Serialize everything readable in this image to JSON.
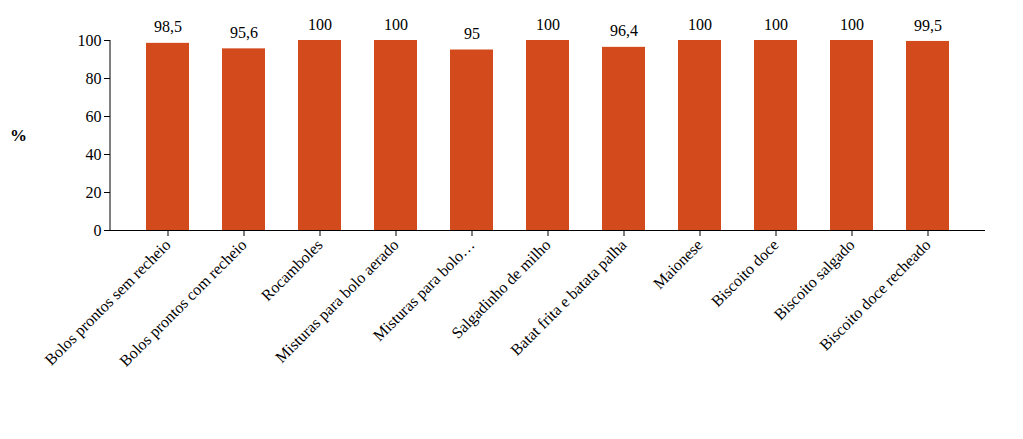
{
  "chart_data": {
    "type": "bar",
    "y_label": "%",
    "categories": [
      "Bolos prontos sem recheio",
      "Bolos prontos com recheio",
      "Rocamboles",
      "Misturas para bolo aerado",
      "Misturas para bolo…",
      "Salgadinho de milho",
      "Batat frita e batata palha",
      "Maionese",
      "Biscoito doce",
      "Biscoito salgado",
      "Biscoito doce recheado"
    ],
    "values": [
      98.5,
      95.6,
      100,
      100,
      95,
      100,
      96.4,
      100,
      100,
      100,
      99.5
    ],
    "value_labels": [
      "98,5",
      "95,6",
      "100",
      "100",
      "95",
      "100",
      "96,4",
      "100",
      "100",
      "100",
      "99,5"
    ],
    "color": "#d34a1c",
    "ylim": [
      0,
      100
    ],
    "yticks": [
      0,
      20,
      40,
      60,
      80,
      100
    ],
    "grid": false,
    "data_labels": true
  }
}
